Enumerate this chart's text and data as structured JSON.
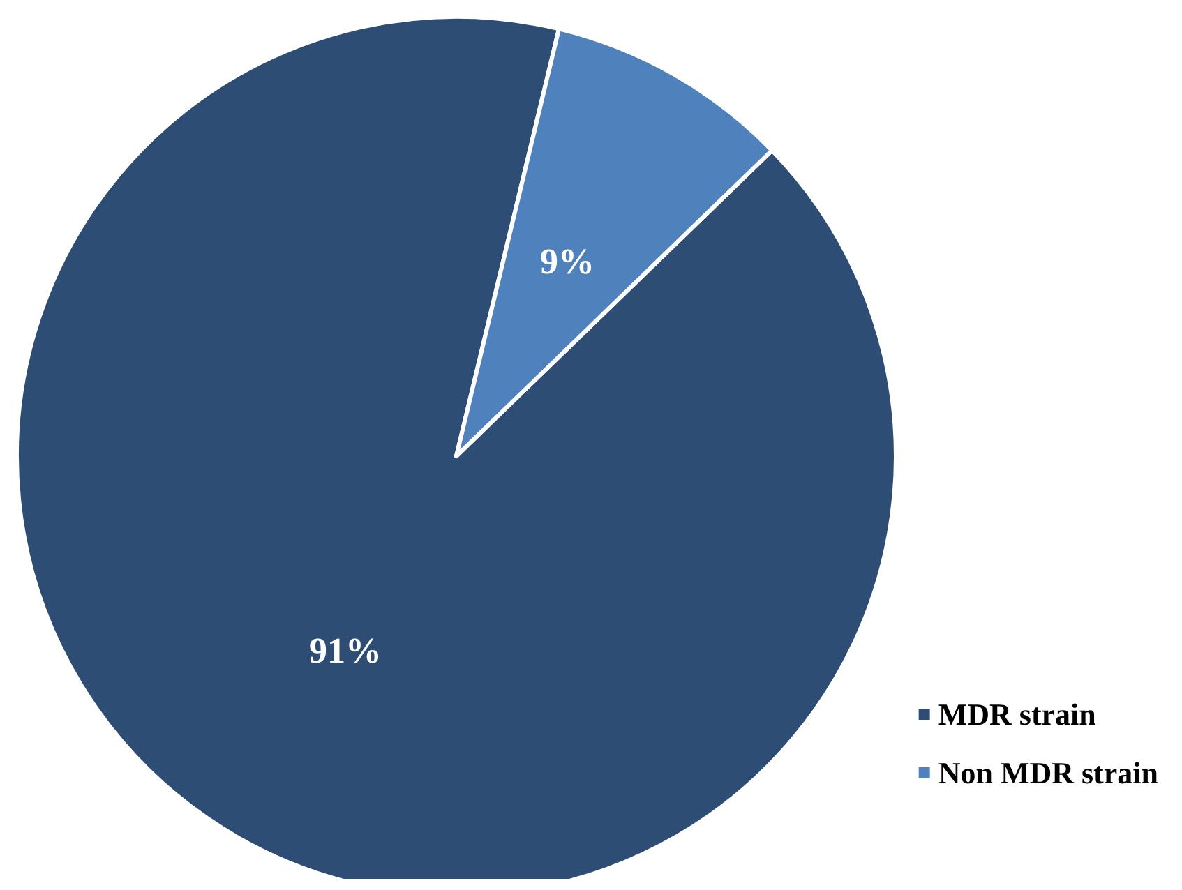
{
  "chart_data": {
    "type": "pie",
    "categories": [
      "MDR strain",
      "Non MDR strain"
    ],
    "values": [
      91,
      9
    ],
    "colors": [
      "#2e4d74",
      "#4f81bd"
    ],
    "value_labels": [
      "91%",
      "9%"
    ],
    "legend": "bottom right"
  }
}
